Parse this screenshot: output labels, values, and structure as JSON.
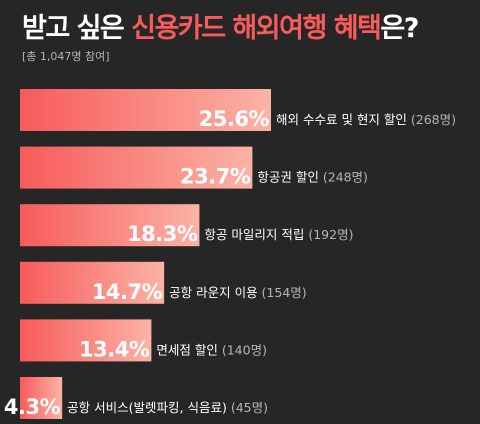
{
  "title": {
    "prefix": "받고 싶은 ",
    "highlight": "신용카드 해외여행 혜택",
    "suffix": "은?"
  },
  "subtitle": "[총 1,047명 참여]",
  "colors": {
    "background": "#262626",
    "bar_start": "#f75b5b",
    "bar_end": "#fbb3a6",
    "highlight": "#f75b5b"
  },
  "chart_data": {
    "type": "bar",
    "orientation": "horizontal",
    "categories": [
      "해외 수수료 및 현지 할인",
      "항공권 할인",
      "항공 마일리지 적립",
      "공항 라운지 이용",
      "면세점 할인",
      "공항 서비스(발렛파킹, 식음료)"
    ],
    "values": [
      25.6,
      23.7,
      18.3,
      14.7,
      13.4,
      4.3
    ],
    "value_labels": [
      "25.6%",
      "23.7%",
      "18.3%",
      "14.7%",
      "13.4%",
      "4.3%"
    ],
    "counts": [
      "(268명)",
      "(248명)",
      "(192명)",
      "(154명)",
      "(140명)",
      "(45명)"
    ],
    "title": "받고 싶은 신용카드 해외여행 혜택은?",
    "xlabel": "",
    "ylabel": ""
  }
}
